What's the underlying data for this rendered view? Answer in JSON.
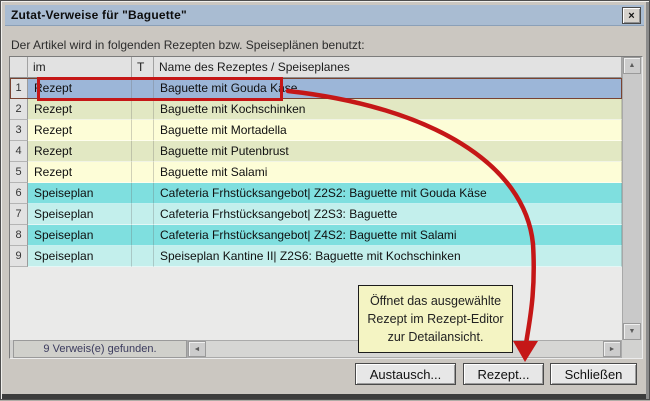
{
  "window": {
    "title": "Zutat-Verweise für \"Baguette\"",
    "subtitle": "Der Artikel wird in folgenden Rezepten bzw. Speiseplänen benutzt:"
  },
  "icons": {
    "close": "×",
    "scroll_up": "▲",
    "scroll_down": "▼",
    "scroll_left": "◄",
    "scroll_right": "►"
  },
  "table": {
    "columns": [
      "",
      "im",
      "T",
      "Name des Rezeptes / Speiseplanes"
    ],
    "rows": [
      {
        "num": "1",
        "im": "Rezept",
        "t": "",
        "name": "Baguette mit Gouda Käse",
        "tone": "selected",
        "selected": true
      },
      {
        "num": "2",
        "im": "Rezept",
        "t": "",
        "name": "Baguette mit Kochschinken",
        "tone": "green",
        "selected": false
      },
      {
        "num": "3",
        "im": "Rezept",
        "t": "",
        "name": "Baguette mit Mortadella",
        "tone": "yellow",
        "selected": false
      },
      {
        "num": "4",
        "im": "Rezept",
        "t": "",
        "name": "Baguette mit Putenbrust",
        "tone": "green",
        "selected": false
      },
      {
        "num": "5",
        "im": "Rezept",
        "t": "",
        "name": "Baguette mit Salami",
        "tone": "yellow",
        "selected": false
      },
      {
        "num": "6",
        "im": "Speiseplan",
        "t": "",
        "name": "Cafeteria Frhstücksangebot| Z2S2: Baguette mit Gouda Käse",
        "tone": "cyan",
        "selected": false
      },
      {
        "num": "7",
        "im": "Speiseplan",
        "t": "",
        "name": "Cafeteria Frhstücksangebot| Z2S3: Baguette",
        "tone": "cyanlight",
        "selected": false
      },
      {
        "num": "8",
        "im": "Speiseplan",
        "t": "",
        "name": "Cafeteria Frhstücksangebot| Z4S2: Baguette mit Salami",
        "tone": "cyan",
        "selected": false
      },
      {
        "num": "9",
        "im": "Speiseplan",
        "t": "",
        "name": "Speiseplan Kantine II| Z2S6: Baguette mit Kochschinken",
        "tone": "cyanlight",
        "selected": false
      }
    ]
  },
  "status": "9  Verweis(e) gefunden.",
  "tooltip": {
    "lines": [
      "Öffnet das ausgewählte",
      "Rezept im Rezept-Editor",
      "zur Detailansicht."
    ]
  },
  "buttons": {
    "austausch": "Austausch...",
    "rezept": "Rezept...",
    "schliessen": "Schließen"
  },
  "colors": {
    "vars": {
      "titlebar": "#a9bcd2",
      "selected": "#9cb6d8",
      "green": "#e2e8c3",
      "yellow": "#fdfdd7",
      "cyan": "#7fdfdf",
      "cyanlight": "#c3efec",
      "annotation": "#c51717",
      "tooltipbg": "#f4f4c3",
      "statustext": "#3b3b5e"
    }
  }
}
